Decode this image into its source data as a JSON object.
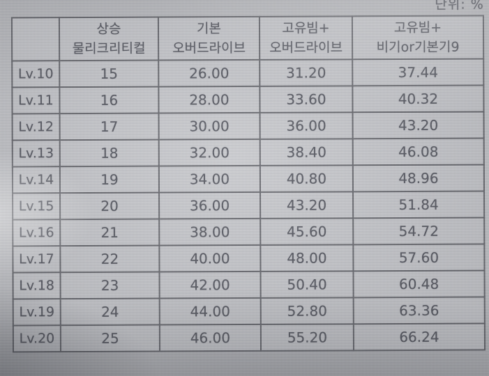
{
  "unit_label": "단위: %",
  "colors": {
    "screen_background": "#c2c3c7",
    "cell_background": "#c7c8cc",
    "border": "#5d5e64",
    "text": "#4c4e57"
  },
  "table": {
    "header": [
      {
        "line1": "",
        "line2": ""
      },
      {
        "line1": "상승",
        "line2": "물리크리티컬"
      },
      {
        "line1": "기본",
        "line2": "오버드라이브"
      },
      {
        "line1": "고유빔+",
        "line2": "오버드라이브"
      },
      {
        "line1": "고유빔+",
        "line2": "비기or기본기9"
      }
    ],
    "rows": [
      {
        "level": "Lv.10",
        "values": [
          "15",
          "26.00",
          "31.20",
          "37.44"
        ]
      },
      {
        "level": "Lv.11",
        "values": [
          "16",
          "28.00",
          "33.60",
          "40.32"
        ]
      },
      {
        "level": "Lv.12",
        "values": [
          "17",
          "30.00",
          "36.00",
          "43.20"
        ]
      },
      {
        "level": "Lv.13",
        "values": [
          "18",
          "32.00",
          "38.40",
          "46.08"
        ]
      },
      {
        "level": "Lv.14",
        "values": [
          "19",
          "34.00",
          "40.80",
          "48.96"
        ]
      },
      {
        "level": "Lv.15",
        "values": [
          "20",
          "36.00",
          "43.20",
          "51.84"
        ]
      },
      {
        "level": "Lv.16",
        "values": [
          "21",
          "38.00",
          "45.60",
          "54.72"
        ]
      },
      {
        "level": "Lv.17",
        "values": [
          "22",
          "40.00",
          "48.00",
          "57.60"
        ]
      },
      {
        "level": "Lv.18",
        "values": [
          "23",
          "42.00",
          "50.40",
          "60.48"
        ]
      },
      {
        "level": "Lv.19",
        "values": [
          "24",
          "44.00",
          "52.80",
          "63.36"
        ]
      },
      {
        "level": "Lv.20",
        "values": [
          "25",
          "46.00",
          "55.20",
          "66.24"
        ]
      }
    ]
  }
}
